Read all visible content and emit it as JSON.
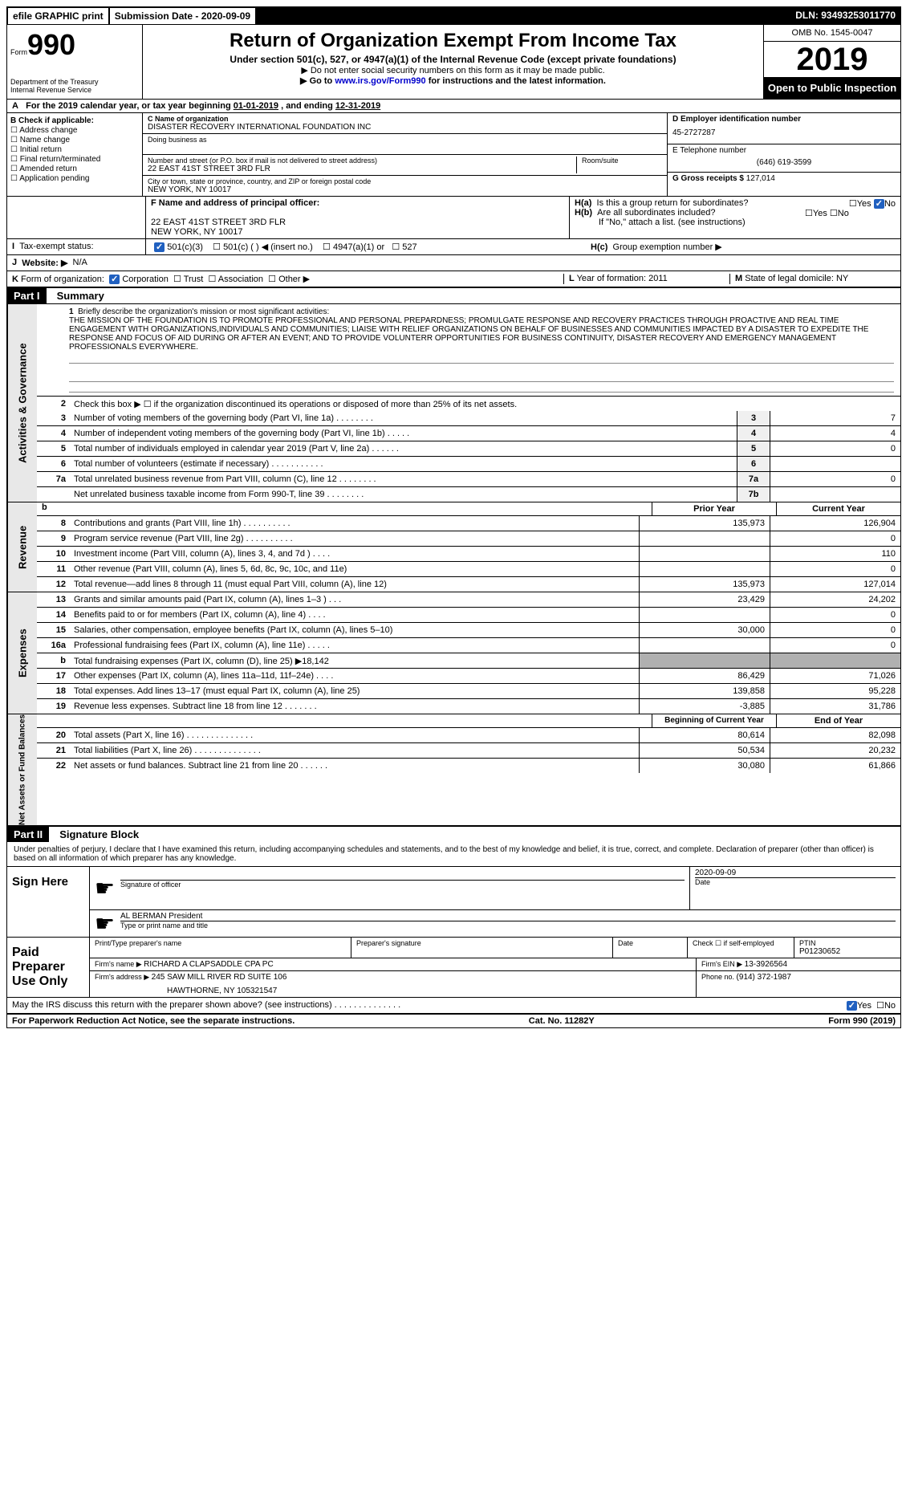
{
  "topbar": {
    "efile": "efile GRAPHIC print",
    "submission_label": "Submission Date - ",
    "submission_date": "2020-09-09",
    "dln_label": "DLN: ",
    "dln": "93493253011770"
  },
  "header": {
    "form_label": "Form",
    "form_number": "990",
    "dept": "Department of the Treasury\nInternal Revenue Service",
    "title": "Return of Organization Exempt From Income Tax",
    "subtitle": "Under section 501(c), 527, or 4947(a)(1) of the Internal Revenue Code (except private foundations)",
    "note1": "▶ Do not enter social security numbers on this form as it may be made public.",
    "note2_pre": "▶ Go to ",
    "note2_link": "www.irs.gov/Form990",
    "note2_post": " for instructions and the latest information.",
    "omb": "OMB No. 1545-0047",
    "year": "2019",
    "open": "Open to Public Inspection"
  },
  "sectionA": {
    "text_pre": "For the 2019 calendar year, or tax year beginning ",
    "begin": "01-01-2019",
    "mid": " , and ending ",
    "end": "12-31-2019",
    "label": "A"
  },
  "colB": {
    "header": "B Check if applicable:",
    "items": [
      "Address change",
      "Name change",
      "Initial return",
      "Final return/terminated",
      "Amended return",
      "Application pending"
    ]
  },
  "colC": {
    "name_label": "C Name of organization",
    "name": "DISASTER RECOVERY INTERNATIONAL FOUNDATION INC",
    "dba_label": "Doing business as",
    "street_label": "Number and street (or P.O. box if mail is not delivered to street address)",
    "room_label": "Room/suite",
    "street": "22 EAST 41ST STREET 3RD FLR",
    "city_label": "City or town, state or province, country, and ZIP or foreign postal code",
    "city": "NEW YORK, NY  10017"
  },
  "colD": {
    "ein_label": "D Employer identification number",
    "ein": "45-2727287",
    "phone_label": "E Telephone number",
    "phone": "(646) 619-3599",
    "gross_label": "G Gross receipts $ ",
    "gross": "127,014"
  },
  "rowF": {
    "f_label": "F Name and address of principal officer:",
    "f_addr1": "22 EAST 41ST STREET 3RD FLR",
    "f_addr2": "NEW YORK, NY  10017",
    "ha_label": "H(a)",
    "ha_text": "Is this a group return for subordinates?",
    "hb_label": "H(b)",
    "hb_text": "Are all subordinates included?",
    "hb_note": "If \"No,\" attach a list. (see instructions)",
    "hc_label": "H(c)",
    "hc_text": "Group exemption number ▶",
    "yes": "Yes",
    "no": "No"
  },
  "rowI": {
    "label": "I",
    "text": "Tax-exempt status:",
    "opt1": "501(c)(3)",
    "opt2": "501(c) (  ) ◀ (insert no.)",
    "opt3": "4947(a)(1) or",
    "opt4": "527"
  },
  "rowJ": {
    "label": "J",
    "text": "Website: ▶",
    "val": "N/A"
  },
  "rowK": {
    "label": "K",
    "text": "Form of organization:",
    "opts": [
      "Corporation",
      "Trust",
      "Association",
      "Other ▶"
    ],
    "l_label": "L",
    "l_text": "Year of formation: ",
    "l_val": "2011",
    "m_label": "M",
    "m_text": "State of legal domicile: ",
    "m_val": "NY"
  },
  "part1": {
    "header": "Part I",
    "title": "Summary",
    "line1_num": "1",
    "line1_label": "Briefly describe the organization's mission or most significant activities:",
    "mission": "THE MISSION OF THE FOUNDATION IS TO PROMOTE PROFESSIONAL AND PERSONAL PREPARDNESS; PROMULGATE RESPONSE AND RECOVERY PRACTICES THROUGH PROACTIVE AND REAL TIME ENGAGEMENT WITH ORGANIZATIONS,INDIVIDUALS AND COMMUNITIES; LIAISE WITH RELIEF ORGANIZATIONS ON BEHALF OF BUSINESSES AND COMMUNITIES IMPACTED BY A DISASTER TO EXPEDITE THE RESPONSE AND FOCUS OF AID DURING OR AFTER AN EVENT; AND TO PROVIDE VOLUNTERR OPPORTUNITIES FOR BUSINESS CONTINUITY, DISASTER RECOVERY AND EMERGENCY MANAGEMENT PROFESSIONALS EVERYWHERE.",
    "line2": "Check this box ▶ ☐ if the organization discontinued its operations or disposed of more than 25% of its net assets.",
    "sidelabels": {
      "gov": "Activities & Governance",
      "rev": "Revenue",
      "exp": "Expenses",
      "net": "Net Assets or Fund Balances"
    },
    "gov_lines": [
      {
        "n": "3",
        "d": "Number of voting members of the governing body (Part VI, line 1a)  .   .   .   .   .   .   .   .",
        "b": "3",
        "v": "7"
      },
      {
        "n": "4",
        "d": "Number of independent voting members of the governing body (Part VI, line 1b)  .   .   .   .   .",
        "b": "4",
        "v": "4"
      },
      {
        "n": "5",
        "d": "Total number of individuals employed in calendar year 2019 (Part V, line 2a)  .   .   .   .   .   .",
        "b": "5",
        "v": "0"
      },
      {
        "n": "6",
        "d": "Total number of volunteers (estimate if necessary)  .   .   .   .   .   .   .   .   .   .   .",
        "b": "6",
        "v": ""
      },
      {
        "n": "7a",
        "d": "Total unrelated business revenue from Part VIII, column (C), line 12  .   .   .   .   .   .   .   .",
        "b": "7a",
        "v": "0"
      },
      {
        "n": "",
        "d": "Net unrelated business taxable income from Form 990-T, line 39  .   .   .   .   .   .   .   .",
        "b": "7b",
        "v": ""
      }
    ],
    "col_headers": {
      "b": "b",
      "py": "Prior Year",
      "cy": "Current Year"
    },
    "rev_lines": [
      {
        "n": "8",
        "d": "Contributions and grants (Part VIII, line 1h)  .   .   .   .   .   .   .   .   .   .",
        "py": "135,973",
        "cy": "126,904"
      },
      {
        "n": "9",
        "d": "Program service revenue (Part VIII, line 2g)  .   .   .   .   .   .   .   .   .   .",
        "py": "",
        "cy": "0"
      },
      {
        "n": "10",
        "d": "Investment income (Part VIII, column (A), lines 3, 4, and 7d )  .   .   .   .",
        "py": "",
        "cy": "110"
      },
      {
        "n": "11",
        "d": "Other revenue (Part VIII, column (A), lines 5, 6d, 8c, 9c, 10c, and 11e)",
        "py": "",
        "cy": "0"
      },
      {
        "n": "12",
        "d": "Total revenue—add lines 8 through 11 (must equal Part VIII, column (A), line 12)",
        "py": "135,973",
        "cy": "127,014"
      }
    ],
    "exp_lines": [
      {
        "n": "13",
        "d": "Grants and similar amounts paid (Part IX, column (A), lines 1–3 )  .   .   .",
        "py": "23,429",
        "cy": "24,202"
      },
      {
        "n": "14",
        "d": "Benefits paid to or for members (Part IX, column (A), line 4)  .   .   .   .",
        "py": "",
        "cy": "0"
      },
      {
        "n": "15",
        "d": "Salaries, other compensation, employee benefits (Part IX, column (A), lines 5–10)",
        "py": "30,000",
        "cy": "0"
      },
      {
        "n": "16a",
        "d": "Professional fundraising fees (Part IX, column (A), line 11e)  .   .   .   .   .",
        "py": "",
        "cy": "0"
      },
      {
        "n": "b",
        "d": "Total fundraising expenses (Part IX, column (D), line 25) ▶18,142",
        "py": "gray",
        "cy": "gray"
      },
      {
        "n": "17",
        "d": "Other expenses (Part IX, column (A), lines 11a–11d, 11f–24e)  .   .   .   .",
        "py": "86,429",
        "cy": "71,026"
      },
      {
        "n": "18",
        "d": "Total expenses. Add lines 13–17 (must equal Part IX, column (A), line 25)",
        "py": "139,858",
        "cy": "95,228"
      },
      {
        "n": "19",
        "d": "Revenue less expenses. Subtract line 18 from line 12  .   .   .   .   .   .   .",
        "py": "-3,885",
        "cy": "31,786"
      }
    ],
    "net_headers": {
      "py": "Beginning of Current Year",
      "cy": "End of Year"
    },
    "net_lines": [
      {
        "n": "20",
        "d": "Total assets (Part X, line 16)  .   .   .   .   .   .   .   .   .   .   .   .   .   .",
        "py": "80,614",
        "cy": "82,098"
      },
      {
        "n": "21",
        "d": "Total liabilities (Part X, line 26)  .   .   .   .   .   .   .   .   .   .   .   .   .   .",
        "py": "50,534",
        "cy": "20,232"
      },
      {
        "n": "22",
        "d": "Net assets or fund balances. Subtract line 21 from line 20  .   .   .   .   .   .",
        "py": "30,080",
        "cy": "61,866"
      }
    ]
  },
  "part2": {
    "header": "Part II",
    "title": "Signature Block",
    "intro": "Under penalties of perjury, I declare that I have examined this return, including accompanying schedules and statements, and to the best of my knowledge and belief, it is true, correct, and complete. Declaration of preparer (other than officer) is based on all information of which preparer has any knowledge.",
    "sign_here": "Sign Here",
    "sig_of_officer": "Signature of officer",
    "date": "Date",
    "sig_date": "2020-09-09",
    "officer_name": "AL BERMAN  President",
    "type_name": "Type or print name and title",
    "paid": "Paid Preparer Use Only",
    "print_name": "Print/Type preparer's name",
    "prep_sig": "Preparer's signature",
    "check_if": "Check ☐ if self-employed",
    "ptin_label": "PTIN",
    "ptin": "P01230652",
    "firm_name_label": "Firm's name    ▶ ",
    "firm_name": "RICHARD A CLAPSADDLE CPA PC",
    "firm_ein_label": "Firm's EIN ▶ ",
    "firm_ein": "13-3926564",
    "firm_addr_label": "Firm's address ▶ ",
    "firm_addr1": "245 SAW MILL RIVER RD SUITE 106",
    "firm_addr2": "HAWTHORNE, NY  105321547",
    "phone_label": "Phone no. ",
    "phone": "(914) 372-1987",
    "discuss": "May the IRS discuss this return with the preparer shown above? (see instructions)  .   .   .   .   .   .   .   .   .   .   .   .   .   .",
    "yes": "Yes",
    "no": "No"
  },
  "footer": {
    "left": "For Paperwork Reduction Act Notice, see the separate instructions.",
    "center": "Cat. No. 11282Y",
    "right_pre": "Form ",
    "right_form": "990",
    "right_post": " (2019)"
  }
}
